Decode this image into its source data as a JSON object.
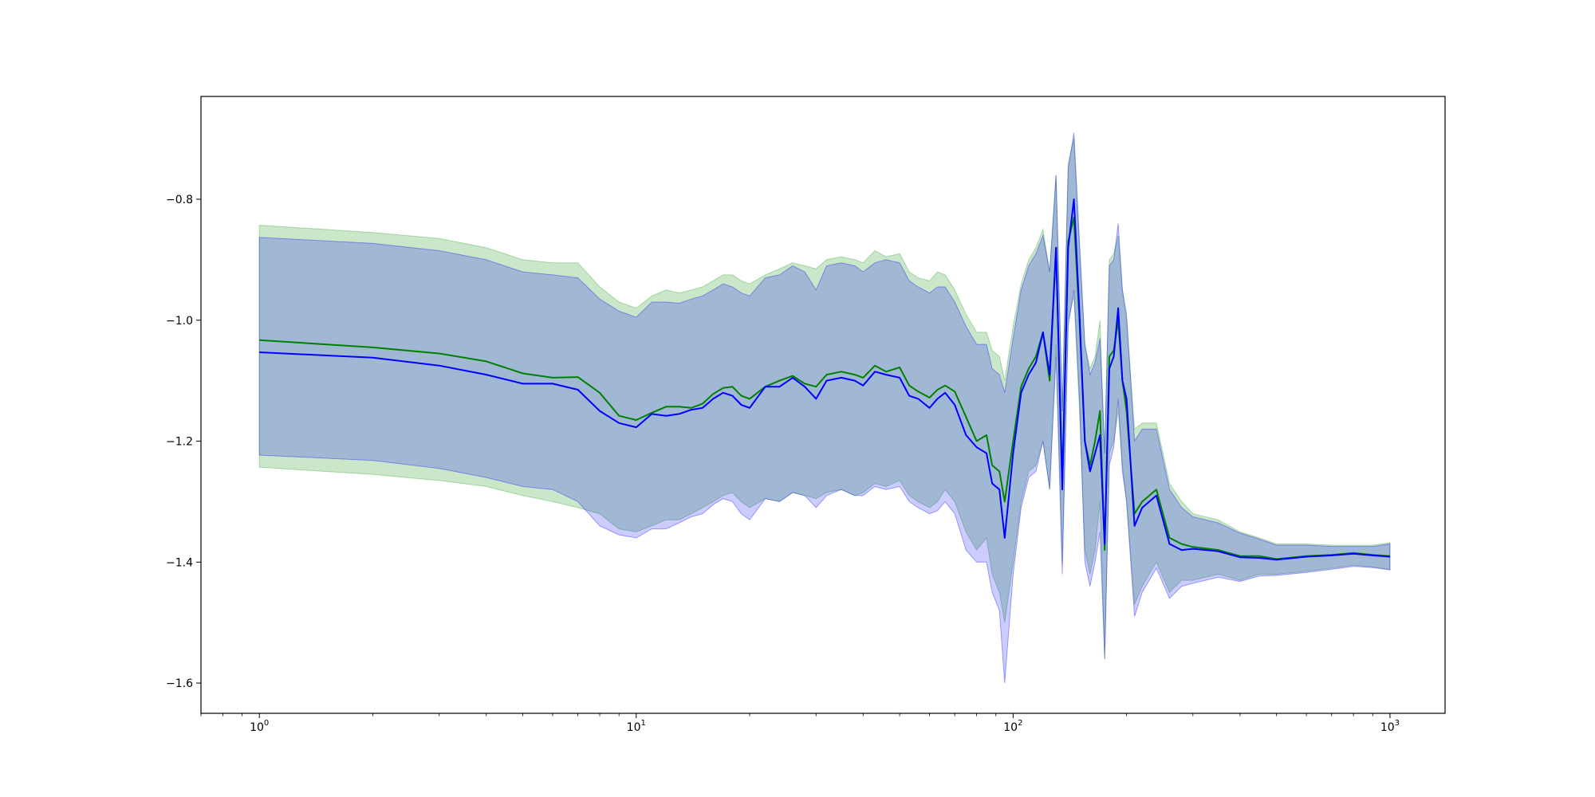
{
  "chart_data": {
    "type": "line",
    "title": "",
    "xlabel": "",
    "ylabel": "",
    "xscale": "log",
    "xlim": [
      0.7,
      1400
    ],
    "ylim": [
      -1.65,
      -0.63
    ],
    "grid": false,
    "legend": "none",
    "x_ticks": [
      {
        "value": 1,
        "base": "10",
        "exp": "0"
      },
      {
        "value": 10,
        "base": "10",
        "exp": "1"
      },
      {
        "value": 100,
        "base": "10",
        "exp": "2"
      },
      {
        "value": 1000,
        "base": "10",
        "exp": "3"
      }
    ],
    "y_ticks": [
      {
        "value": -1.6,
        "label": "−1.6"
      },
      {
        "value": -1.4,
        "label": "−1.4"
      },
      {
        "value": -1.2,
        "label": "−1.2"
      },
      {
        "value": -1.0,
        "label": "−1.0"
      },
      {
        "value": -0.8,
        "label": "−0.8"
      }
    ],
    "series": [
      {
        "color": "#008000",
        "band_color": "#2ca02c",
        "band_opacity": 0.25,
        "points": [
          [
            1,
            -1.033,
            -1.243,
            -0.843
          ],
          [
            2,
            -1.045,
            -1.255,
            -0.855
          ],
          [
            3,
            -1.055,
            -1.265,
            -0.865
          ],
          [
            4,
            -1.068,
            -1.275,
            -0.88
          ],
          [
            5,
            -1.088,
            -1.29,
            -0.9
          ],
          [
            6,
            -1.095,
            -1.3,
            -0.905
          ],
          [
            7,
            -1.094,
            -1.31,
            -0.905
          ],
          [
            8,
            -1.12,
            -1.32,
            -0.945
          ],
          [
            9,
            -1.158,
            -1.345,
            -0.97
          ],
          [
            10,
            -1.165,
            -1.35,
            -0.98
          ],
          [
            11,
            -1.153,
            -1.34,
            -0.96
          ],
          [
            12,
            -1.143,
            -1.33,
            -0.95
          ],
          [
            13,
            -1.143,
            -1.33,
            -0.955
          ],
          [
            14,
            -1.145,
            -1.32,
            -0.95
          ],
          [
            15,
            -1.138,
            -1.31,
            -0.945
          ],
          [
            16,
            -1.122,
            -1.3,
            -0.935
          ],
          [
            17,
            -1.112,
            -1.29,
            -0.925
          ],
          [
            18,
            -1.11,
            -1.285,
            -0.925
          ],
          [
            19,
            -1.125,
            -1.3,
            -0.935
          ],
          [
            20,
            -1.13,
            -1.31,
            -0.94
          ],
          [
            22,
            -1.11,
            -1.295,
            -0.925
          ],
          [
            24,
            -1.1,
            -1.3,
            -0.915
          ],
          [
            26,
            -1.092,
            -1.285,
            -0.905
          ],
          [
            28,
            -1.105,
            -1.29,
            -0.91
          ],
          [
            30,
            -1.11,
            -1.295,
            -0.915
          ],
          [
            32,
            -1.09,
            -1.285,
            -0.9
          ],
          [
            35,
            -1.085,
            -1.28,
            -0.895
          ],
          [
            38,
            -1.09,
            -1.29,
            -0.9
          ],
          [
            40,
            -1.095,
            -1.285,
            -0.905
          ],
          [
            43,
            -1.075,
            -1.27,
            -0.885
          ],
          [
            46,
            -1.085,
            -1.275,
            -0.895
          ],
          [
            50,
            -1.078,
            -1.265,
            -0.89
          ],
          [
            53,
            -1.108,
            -1.29,
            -0.92
          ],
          [
            56,
            -1.118,
            -1.3,
            -0.93
          ],
          [
            60,
            -1.128,
            -1.31,
            -0.935
          ],
          [
            63,
            -1.115,
            -1.3,
            -0.92
          ],
          [
            66,
            -1.108,
            -1.28,
            -0.925
          ],
          [
            70,
            -1.118,
            -1.3,
            -0.95
          ],
          [
            75,
            -1.16,
            -1.35,
            -0.99
          ],
          [
            80,
            -1.2,
            -1.38,
            -1.02
          ],
          [
            85,
            -1.19,
            -1.36,
            -1.02
          ],
          [
            88,
            -1.24,
            -1.42,
            -1.05
          ],
          [
            92,
            -1.25,
            -1.45,
            -1.06
          ],
          [
            95,
            -1.3,
            -1.5,
            -1.1
          ],
          [
            100,
            -1.2,
            -1.4,
            -1.01
          ],
          [
            105,
            -1.11,
            -1.3,
            -0.94
          ],
          [
            110,
            -1.08,
            -1.25,
            -0.9
          ],
          [
            115,
            -1.06,
            -1.24,
            -0.88
          ],
          [
            120,
            -1.02,
            -1.2,
            -0.85
          ],
          [
            125,
            -1.1,
            -1.28,
            -0.92
          ],
          [
            130,
            -0.88,
            -1.04,
            -0.76
          ],
          [
            135,
            -1.27,
            -1.4,
            -1.15
          ],
          [
            140,
            -0.87,
            -1.0,
            -0.74
          ],
          [
            145,
            -0.83,
            -0.96,
            -0.7
          ],
          [
            150,
            -1.0,
            -1.15,
            -0.88
          ],
          [
            155,
            -1.2,
            -1.38,
            -1.04
          ],
          [
            160,
            -1.24,
            -1.42,
            -1.08
          ],
          [
            165,
            -1.2,
            -1.38,
            -1.06
          ],
          [
            170,
            -1.15,
            -1.3,
            -1.0
          ],
          [
            175,
            -1.38,
            -1.56,
            -1.22
          ],
          [
            180,
            -1.06,
            -1.22,
            -0.9
          ],
          [
            185,
            -1.05,
            -1.2,
            -0.89
          ],
          [
            190,
            -1.0,
            -1.15,
            -0.86
          ],
          [
            195,
            -1.1,
            -1.24,
            -0.95
          ],
          [
            200,
            -1.15,
            -1.3,
            -1.0
          ],
          [
            210,
            -1.32,
            -1.47,
            -1.18
          ],
          [
            220,
            -1.3,
            -1.44,
            -1.17
          ],
          [
            240,
            -1.28,
            -1.4,
            -1.17
          ],
          [
            260,
            -1.36,
            -1.45,
            -1.27
          ],
          [
            280,
            -1.37,
            -1.43,
            -1.3
          ],
          [
            300,
            -1.375,
            -1.43,
            -1.32
          ],
          [
            350,
            -1.38,
            -1.42,
            -1.33
          ],
          [
            400,
            -1.39,
            -1.43,
            -1.35
          ],
          [
            450,
            -1.39,
            -1.42,
            -1.36
          ],
          [
            500,
            -1.395,
            -1.42,
            -1.37
          ],
          [
            600,
            -1.39,
            -1.415,
            -1.37
          ],
          [
            700,
            -1.388,
            -1.41,
            -1.372
          ],
          [
            800,
            -1.385,
            -1.405,
            -1.372
          ],
          [
            900,
            -1.388,
            -1.408,
            -1.372
          ],
          [
            1000,
            -1.39,
            -1.412,
            -1.368
          ]
        ]
      },
      {
        "color": "#0000ff",
        "band_color": "#0000ff",
        "band_opacity": 0.2,
        "points": [
          [
            1,
            -1.053,
            -1.223,
            -0.863
          ],
          [
            2,
            -1.062,
            -1.232,
            -0.873
          ],
          [
            3,
            -1.075,
            -1.245,
            -0.885
          ],
          [
            4,
            -1.09,
            -1.26,
            -0.9
          ],
          [
            5,
            -1.105,
            -1.275,
            -0.92
          ],
          [
            6,
            -1.105,
            -1.28,
            -0.925
          ],
          [
            7,
            -1.115,
            -1.3,
            -0.93
          ],
          [
            8,
            -1.15,
            -1.34,
            -0.965
          ],
          [
            9,
            -1.17,
            -1.355,
            -0.985
          ],
          [
            10,
            -1.177,
            -1.36,
            -0.995
          ],
          [
            11,
            -1.155,
            -1.345,
            -0.97
          ],
          [
            12,
            -1.158,
            -1.345,
            -0.97
          ],
          [
            13,
            -1.155,
            -1.335,
            -0.972
          ],
          [
            14,
            -1.148,
            -1.325,
            -0.965
          ],
          [
            15,
            -1.145,
            -1.32,
            -0.96
          ],
          [
            16,
            -1.13,
            -1.305,
            -0.95
          ],
          [
            17,
            -1.12,
            -1.295,
            -0.94
          ],
          [
            18,
            -1.125,
            -1.3,
            -0.945
          ],
          [
            19,
            -1.14,
            -1.32,
            -0.955
          ],
          [
            20,
            -1.145,
            -1.33,
            -0.96
          ],
          [
            22,
            -1.11,
            -1.295,
            -0.93
          ],
          [
            24,
            -1.11,
            -1.3,
            -0.925
          ],
          [
            26,
            -1.095,
            -1.285,
            -0.91
          ],
          [
            28,
            -1.11,
            -1.29,
            -0.92
          ],
          [
            30,
            -1.13,
            -1.31,
            -0.95
          ],
          [
            32,
            -1.1,
            -1.29,
            -0.91
          ],
          [
            35,
            -1.095,
            -1.28,
            -0.905
          ],
          [
            38,
            -1.1,
            -1.29,
            -0.91
          ],
          [
            40,
            -1.108,
            -1.29,
            -0.92
          ],
          [
            43,
            -1.085,
            -1.275,
            -0.905
          ],
          [
            46,
            -1.09,
            -1.28,
            -0.9
          ],
          [
            50,
            -1.095,
            -1.275,
            -0.905
          ],
          [
            53,
            -1.125,
            -1.3,
            -0.935
          ],
          [
            56,
            -1.13,
            -1.31,
            -0.945
          ],
          [
            60,
            -1.145,
            -1.32,
            -0.955
          ],
          [
            63,
            -1.13,
            -1.315,
            -0.945
          ],
          [
            66,
            -1.12,
            -1.3,
            -0.945
          ],
          [
            70,
            -1.14,
            -1.32,
            -0.97
          ],
          [
            75,
            -1.19,
            -1.38,
            -1.01
          ],
          [
            80,
            -1.21,
            -1.4,
            -1.04
          ],
          [
            85,
            -1.22,
            -1.4,
            -1.04
          ],
          [
            88,
            -1.27,
            -1.45,
            -1.08
          ],
          [
            92,
            -1.28,
            -1.48,
            -1.09
          ],
          [
            95,
            -1.36,
            -1.6,
            -1.12
          ],
          [
            100,
            -1.22,
            -1.42,
            -1.03
          ],
          [
            105,
            -1.12,
            -1.31,
            -0.95
          ],
          [
            110,
            -1.09,
            -1.26,
            -0.91
          ],
          [
            115,
            -1.07,
            -1.25,
            -0.89
          ],
          [
            120,
            -1.02,
            -1.2,
            -0.86
          ],
          [
            125,
            -1.09,
            -1.28,
            -0.92
          ],
          [
            130,
            -0.88,
            -1.06,
            -0.76
          ],
          [
            135,
            -1.28,
            -1.42,
            -1.15
          ],
          [
            140,
            -0.88,
            -1.01,
            -0.75
          ],
          [
            145,
            -0.8,
            -0.95,
            -0.69
          ],
          [
            150,
            -0.99,
            -1.13,
            -0.87
          ],
          [
            155,
            -1.2,
            -1.4,
            -1.04
          ],
          [
            160,
            -1.25,
            -1.44,
            -1.09
          ],
          [
            165,
            -1.22,
            -1.4,
            -1.07
          ],
          [
            170,
            -1.19,
            -1.35,
            -1.03
          ],
          [
            175,
            -1.37,
            -1.56,
            -1.22
          ],
          [
            180,
            -1.08,
            -1.24,
            -0.91
          ],
          [
            185,
            -1.06,
            -1.21,
            -0.9
          ],
          [
            190,
            -0.98,
            -1.13,
            -0.84
          ],
          [
            195,
            -1.1,
            -1.25,
            -0.95
          ],
          [
            200,
            -1.13,
            -1.3,
            -0.99
          ],
          [
            210,
            -1.34,
            -1.49,
            -1.2
          ],
          [
            220,
            -1.31,
            -1.45,
            -1.18
          ],
          [
            240,
            -1.29,
            -1.41,
            -1.18
          ],
          [
            260,
            -1.37,
            -1.46,
            -1.28
          ],
          [
            280,
            -1.38,
            -1.44,
            -1.31
          ],
          [
            300,
            -1.378,
            -1.435,
            -1.325
          ],
          [
            350,
            -1.382,
            -1.425,
            -1.335
          ],
          [
            400,
            -1.392,
            -1.432,
            -1.352
          ],
          [
            450,
            -1.393,
            -1.423,
            -1.362
          ],
          [
            500,
            -1.396,
            -1.422,
            -1.372
          ],
          [
            600,
            -1.391,
            -1.417,
            -1.372
          ],
          [
            700,
            -1.389,
            -1.412,
            -1.374
          ],
          [
            800,
            -1.386,
            -1.407,
            -1.374
          ],
          [
            900,
            -1.389,
            -1.409,
            -1.374
          ],
          [
            1000,
            -1.391,
            -1.413,
            -1.37
          ]
        ]
      }
    ]
  }
}
